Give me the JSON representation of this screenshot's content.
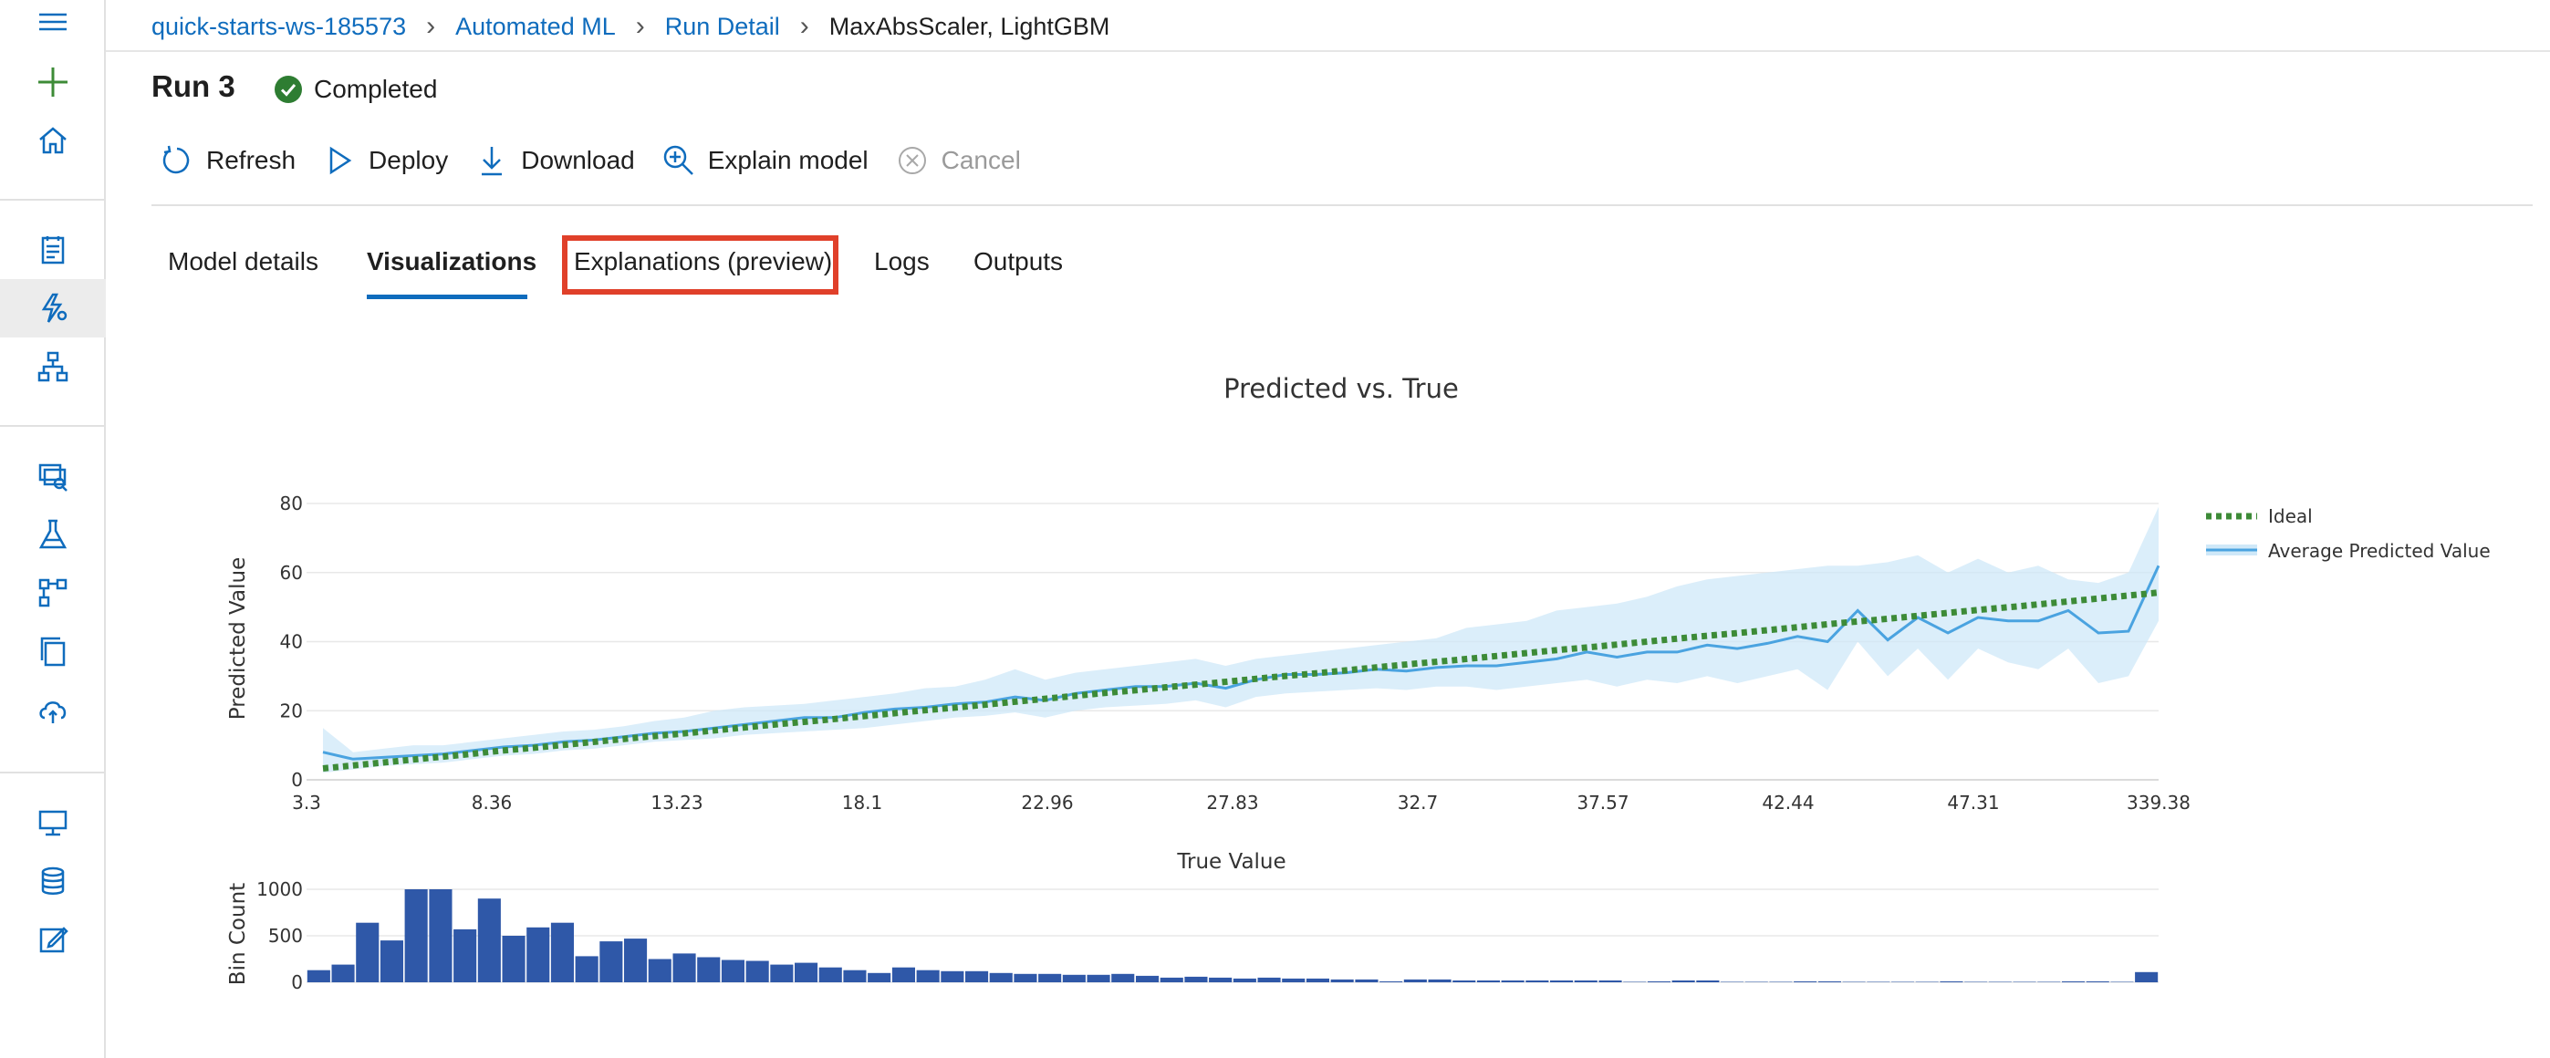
{
  "breadcrumb": {
    "items": [
      "quick-starts-ws-185573",
      "Automated ML",
      "Run Detail"
    ],
    "current": "MaxAbsScaler, LightGBM"
  },
  "run": {
    "title": "Run 3",
    "status": "Completed",
    "status_color": "#2e7d32"
  },
  "toolbar": {
    "refresh": "Refresh",
    "deploy": "Deploy",
    "download": "Download",
    "explain": "Explain model",
    "cancel": "Cancel"
  },
  "tabs": [
    {
      "label": "Model details",
      "selected": false
    },
    {
      "label": "Visualizations",
      "selected": true
    },
    {
      "label": "Explanations (preview)",
      "selected": false,
      "highlighted": true
    },
    {
      "label": "Logs",
      "selected": false
    },
    {
      "label": "Outputs",
      "selected": false
    }
  ],
  "colors": {
    "accent": "#0f6cbd",
    "highlight_box": "#e0402a",
    "ideal_line": "#3d8b37",
    "avg_line": "#4aa3e0",
    "band": "#cfe8f8",
    "bars": "#2f58a8"
  },
  "nav_icons": [
    "menu-icon",
    "add-icon",
    "home-icon",
    "notebook-icon",
    "automl-icon",
    "designer-icon",
    "datasets-icon",
    "experiments-icon",
    "pipelines-icon",
    "models-icon",
    "endpoints-icon",
    "compute-icon",
    "datastores-icon",
    "labeling-icon"
  ],
  "chart_data": [
    {
      "type": "line",
      "title": "Predicted vs. True",
      "xlabel": "True Value",
      "ylabel": "Predicted Value",
      "x_tick_labels": [
        "3.3",
        "8.36",
        "13.23",
        "18.1",
        "22.96",
        "27.83",
        "32.7",
        "37.57",
        "42.44",
        "47.31",
        "339.38"
      ],
      "y_ticks": [
        0,
        20,
        40,
        60,
        80
      ],
      "ylim": [
        0,
        80
      ],
      "grid": true,
      "legend": "top-right",
      "series": [
        {
          "name": "Ideal",
          "style": "dotted",
          "values": [
            3.3,
            4.3,
            5.3,
            6.3,
            7.3,
            8.4,
            9.3,
            10.3,
            11.3,
            12.3,
            13.2,
            14.2,
            15.2,
            16.2,
            17.1,
            18.1,
            19.1,
            20.1,
            21.0,
            22.0,
            23.0,
            24.0,
            25.0,
            25.9,
            26.9,
            27.8,
            28.8,
            29.8,
            30.7,
            31.7,
            32.7,
            33.7,
            34.6,
            35.6,
            36.6,
            37.6,
            38.5,
            39.5,
            40.5,
            41.5,
            42.4,
            43.4,
            44.4,
            45.4,
            46.3,
            47.3,
            48.3,
            49.3,
            50.2,
            51.2,
            52.2,
            53.2,
            54.2
          ]
        },
        {
          "name": "Average Predicted Value",
          "style": "solid",
          "values": [
            8,
            6,
            6.5,
            7,
            7.5,
            8.5,
            9.5,
            10,
            11,
            11.5,
            12.5,
            13.5,
            14,
            15,
            16,
            17,
            18,
            18,
            19.5,
            20.5,
            21,
            22,
            22.5,
            24,
            23,
            25,
            26,
            27,
            27,
            28,
            26.5,
            29,
            30.5,
            30.5,
            31,
            32,
            31.5,
            32.5,
            33,
            33,
            34,
            35,
            37,
            35.5,
            37,
            37,
            39,
            38,
            39.5,
            41.5,
            40,
            49,
            40.5,
            47,
            42.5,
            47,
            46,
            46,
            49,
            42.5,
            43,
            62
          ]
        },
        {
          "name": "band_upper",
          "values": [
            15,
            8,
            9,
            10,
            10,
            11,
            12,
            13,
            14,
            14.5,
            15.5,
            17,
            18,
            20,
            21,
            21.5,
            22,
            23,
            24,
            25,
            26.5,
            27,
            29,
            32,
            29,
            31,
            32,
            33,
            34,
            35,
            33,
            35,
            36,
            37,
            38,
            39,
            40,
            41,
            44,
            45,
            46,
            49,
            50,
            51,
            53,
            56,
            58,
            59,
            60,
            61,
            62,
            62,
            63,
            65,
            60,
            64,
            60,
            62,
            58,
            57,
            60,
            79
          ]
        },
        {
          "name": "band_lower",
          "values": [
            2,
            3,
            4,
            4.5,
            5,
            6,
            7,
            7.5,
            8.5,
            9,
            10,
            11,
            11.5,
            12,
            13,
            13.5,
            14,
            14.5,
            15,
            16,
            17,
            18,
            18.5,
            19.5,
            18,
            20,
            21,
            21.5,
            22,
            23,
            21,
            24,
            25,
            25.5,
            26,
            26.5,
            26,
            27,
            27,
            26,
            27,
            28,
            29,
            27,
            29,
            28,
            30,
            28,
            30,
            32,
            26,
            40,
            30,
            38,
            29,
            38,
            34,
            32,
            38,
            28,
            30,
            46
          ]
        }
      ]
    },
    {
      "type": "bar",
      "xlabel": "True Value",
      "ylabel": "Bin Count",
      "y_ticks": [
        0,
        500,
        1000
      ],
      "ylim": [
        0,
        1000
      ],
      "values": [
        130,
        190,
        640,
        450,
        1000,
        1000,
        570,
        900,
        500,
        590,
        640,
        280,
        440,
        470,
        250,
        310,
        270,
        240,
        230,
        190,
        210,
        160,
        130,
        100,
        160,
        130,
        120,
        120,
        100,
        90,
        90,
        80,
        80,
        90,
        70,
        50,
        60,
        50,
        40,
        50,
        40,
        40,
        30,
        30,
        10,
        30,
        30,
        20,
        20,
        20,
        20,
        20,
        20,
        20,
        5,
        10,
        20,
        20,
        5,
        5,
        5,
        10,
        10,
        5,
        5,
        5,
        5,
        10,
        5,
        5,
        5,
        5,
        10,
        10,
        5,
        110
      ]
    }
  ]
}
